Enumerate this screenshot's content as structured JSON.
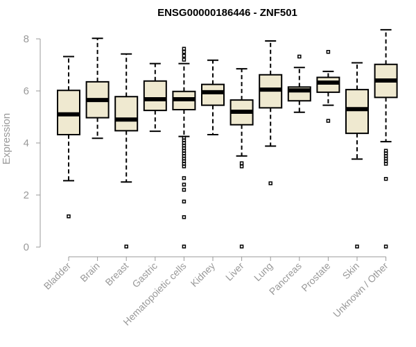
{
  "chart_data": {
    "type": "boxplot",
    "title": "ENSG00000186446 - ZNF501",
    "xlabel": "",
    "ylabel": "Expression",
    "ylim": [
      0,
      8.4
    ],
    "yticks": [
      0,
      2,
      4,
      6,
      8
    ],
    "categories": [
      "Bladder",
      "Brain",
      "Breast",
      "Gastric",
      "Hematopoietic cells",
      "Kidney",
      "Liver",
      "Lung",
      "Pancreas",
      "Prostate",
      "Skin",
      "Unknown / Other"
    ],
    "boxes": [
      {
        "whisker_low": 2.55,
        "q1": 4.32,
        "median": 5.1,
        "q3": 6.02,
        "whisker_high": 7.32,
        "outliers": [
          1.18
        ]
      },
      {
        "whisker_low": 4.18,
        "q1": 4.97,
        "median": 5.65,
        "q3": 6.35,
        "whisker_high": 8.02,
        "outliers": []
      },
      {
        "whisker_low": 2.5,
        "q1": 4.47,
        "median": 4.9,
        "q3": 5.78,
        "whisker_high": 7.42,
        "outliers": [
          0.02
        ]
      },
      {
        "whisker_low": 4.45,
        "q1": 5.25,
        "median": 5.68,
        "q3": 6.38,
        "whisker_high": 7.05,
        "outliers": []
      },
      {
        "whisker_low": 4.25,
        "q1": 5.28,
        "median": 5.68,
        "q3": 5.98,
        "whisker_high": 7.05,
        "outliers": [
          7.62,
          7.5,
          7.35,
          7.2,
          4.2,
          4.1,
          4.0,
          3.9,
          3.8,
          3.7,
          3.6,
          3.5,
          3.4,
          3.3,
          3.2,
          3.1,
          2.65,
          2.4,
          2.2,
          1.75,
          1.15,
          0.02
        ]
      },
      {
        "whisker_low": 4.32,
        "q1": 5.45,
        "median": 5.95,
        "q3": 6.25,
        "whisker_high": 7.18,
        "outliers": []
      },
      {
        "whisker_low": 3.5,
        "q1": 4.7,
        "median": 5.2,
        "q3": 5.65,
        "whisker_high": 6.85,
        "outliers": [
          3.22,
          3.1,
          0.02
        ]
      },
      {
        "whisker_low": 3.88,
        "q1": 5.35,
        "median": 6.05,
        "q3": 6.62,
        "whisker_high": 7.92,
        "outliers": [
          2.45
        ]
      },
      {
        "whisker_low": 5.18,
        "q1": 5.62,
        "median": 6.02,
        "q3": 6.15,
        "whisker_high": 6.9,
        "outliers": [
          7.32
        ]
      },
      {
        "whisker_low": 5.45,
        "q1": 5.95,
        "median": 6.32,
        "q3": 6.52,
        "whisker_high": 6.75,
        "outliers": [
          7.5,
          4.85
        ]
      },
      {
        "whisker_low": 3.38,
        "q1": 4.37,
        "median": 5.3,
        "q3": 6.05,
        "whisker_high": 7.08,
        "outliers": [
          0.02
        ]
      },
      {
        "whisker_low": 4.05,
        "q1": 5.75,
        "median": 6.4,
        "q3": 7.02,
        "whisker_high": 8.35,
        "outliers": [
          3.7,
          3.6,
          3.5,
          3.4,
          3.3,
          3.2,
          2.62,
          0.02
        ]
      }
    ],
    "colors": {
      "box_fill": "#efe9d0",
      "box_stroke": "#000000",
      "median": "#000000",
      "axis": "#999999"
    },
    "grid": false,
    "legend": "none"
  }
}
